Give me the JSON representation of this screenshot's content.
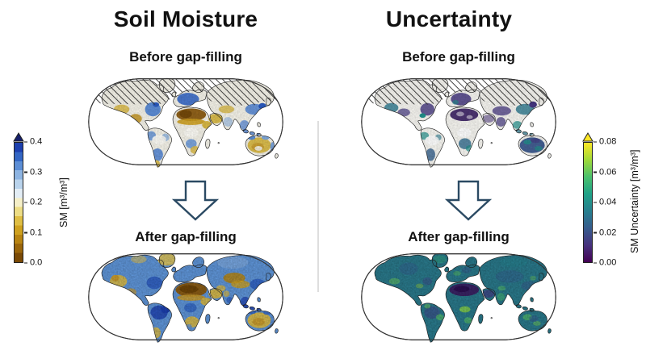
{
  "figure": {
    "columns": [
      {
        "title": "Soil Moisture",
        "before_label": "Before gap-filling",
        "after_label": "After gap-filling"
      },
      {
        "title": "Uncertainty",
        "before_label": "Before gap-filling",
        "after_label": "After gap-filling"
      }
    ],
    "maps": [
      {
        "name": "soil-moisture-before",
        "column": "Soil Moisture",
        "label": "Before gap-filling",
        "hatched_no_data_north": true,
        "has_gaps": true
      },
      {
        "name": "soil-moisture-after",
        "column": "Soil Moisture",
        "label": "After gap-filling",
        "hatched_no_data_north": false,
        "has_gaps": false
      },
      {
        "name": "uncertainty-before",
        "column": "Uncertainty",
        "label": "Before gap-filling",
        "hatched_no_data_north": true,
        "has_gaps": true
      },
      {
        "name": "uncertainty-after",
        "column": "Uncertainty",
        "label": "After gap-filling",
        "hatched_no_data_north": false,
        "has_gaps": false
      }
    ]
  },
  "colorbars": {
    "sm": {
      "label": "SM [m³/m³]",
      "ticks": [
        "0.4",
        "0.3",
        "0.2",
        "0.1",
        "0.0"
      ],
      "range": [
        0.0,
        0.4
      ],
      "stepped": true,
      "colors_bottom_to_top": [
        "#7a4a06",
        "#9a660b",
        "#b88412",
        "#cfa11f",
        "#dfbe44",
        "#eddd85",
        "#f5efc8",
        "#e3edf5",
        "#b9d3ec",
        "#8db4e2",
        "#5c8ed6",
        "#3366c4",
        "#1c3fae"
      ],
      "over_arrow_color": "#161f6b"
    },
    "unc": {
      "label": "SM Uncertainty [m³/m³]",
      "ticks": [
        "0.08",
        "0.06",
        "0.04",
        "0.02",
        "0.00"
      ],
      "range": [
        0.0,
        0.08
      ],
      "stepped": false,
      "colors_bottom_to_top": [
        "#440154",
        "#46327e",
        "#365c8d",
        "#277f8e",
        "#1fa187",
        "#4ac16d",
        "#a0da39",
        "#fde725"
      ],
      "over_arrow_color": "#fde725"
    }
  },
  "arrow_color": "#2b4a63"
}
